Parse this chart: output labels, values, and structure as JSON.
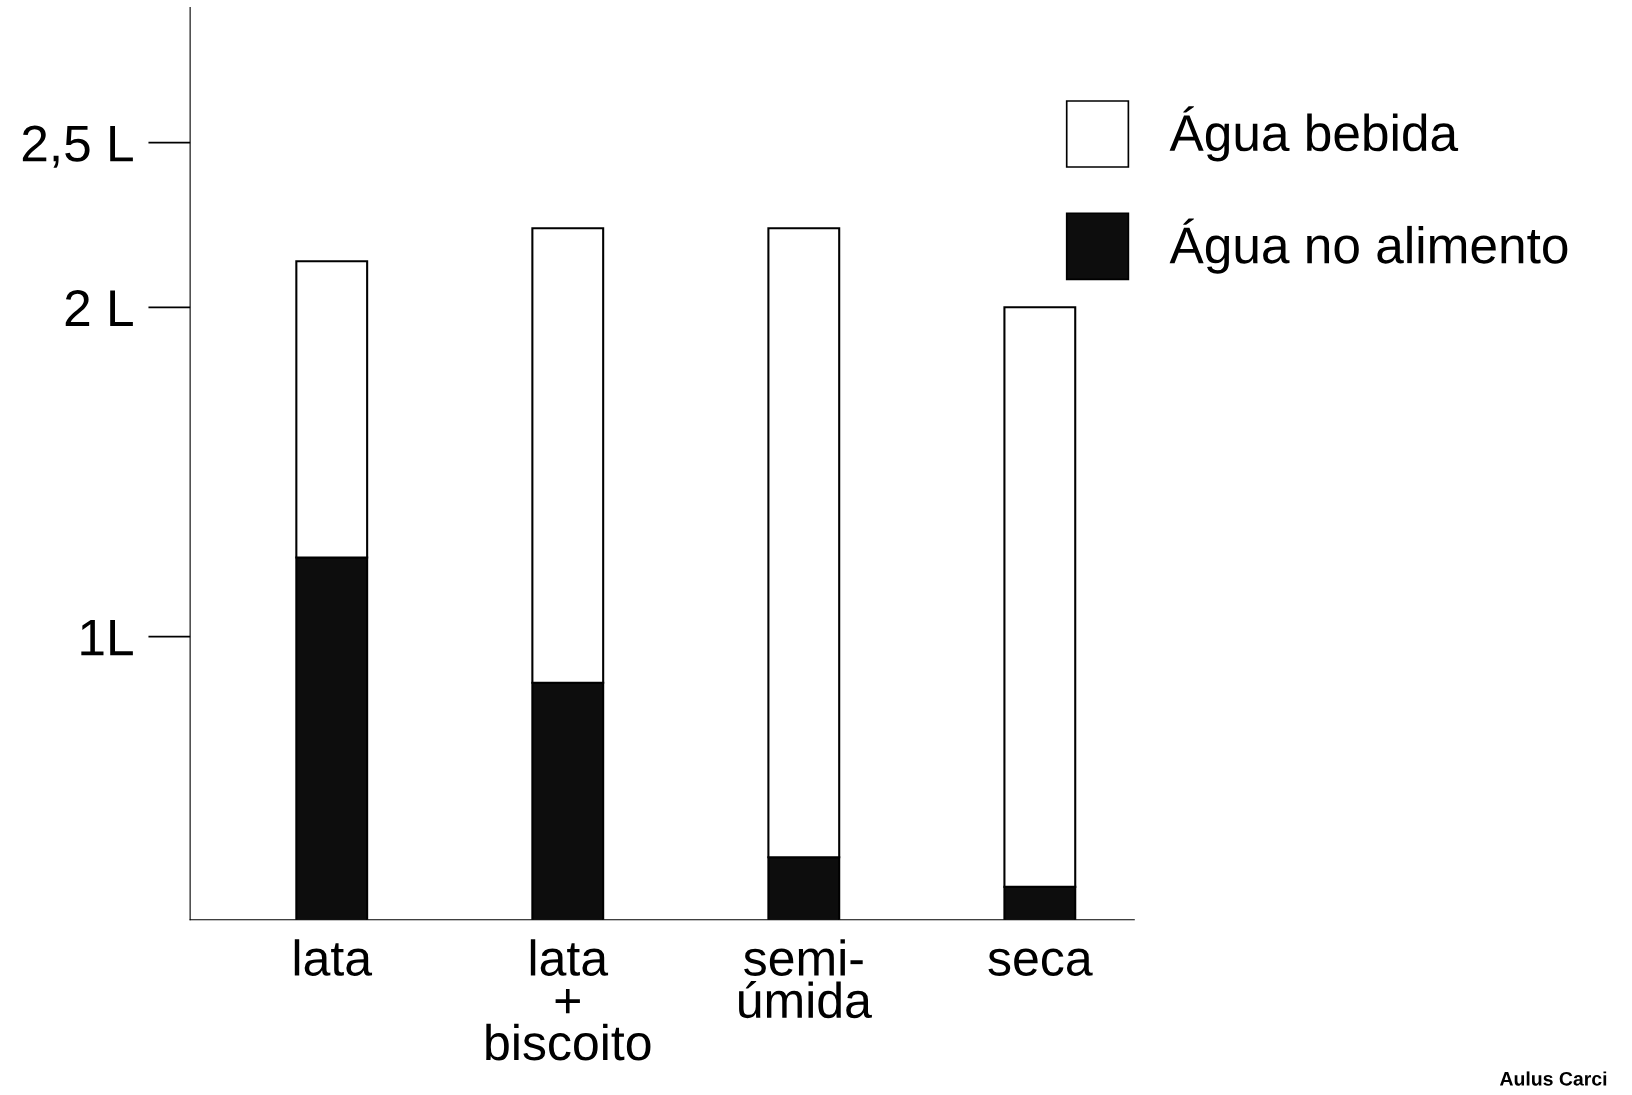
{
  "chart_data": {
    "type": "bar",
    "stacked": true,
    "categories": [
      "lata",
      "lata\n+\nbiscoito",
      "semi-\númida",
      "seca"
    ],
    "series": [
      {
        "name": "Água no alimento",
        "color": "#0d0d0d",
        "values": [
          1.24,
          0.86,
          0.33,
          0.24
        ]
      },
      {
        "name": "Água bebida",
        "color": "#ffffff",
        "values": [
          0.9,
          1.38,
          1.91,
          1.76
        ]
      }
    ],
    "ylim": [
      0.14,
      2.91
    ],
    "yticks": [
      {
        "value": 1,
        "label": "1L"
      },
      {
        "value": 2,
        "label": "2 L"
      },
      {
        "value": 2.5,
        "label": "2,5 L"
      }
    ],
    "grid": false,
    "legend": "top right",
    "annotations": [
      "Aulus Carci"
    ]
  }
}
